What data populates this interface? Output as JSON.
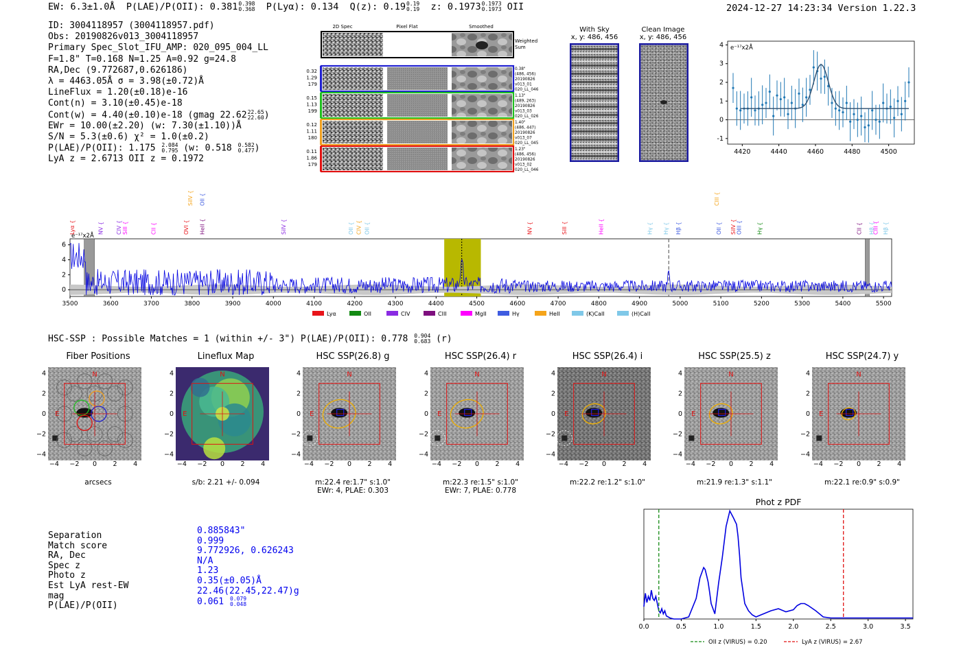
{
  "header": {
    "ew": "EW: 6.3±1.0Å",
    "plae_label": "P(LAE)/P(OII): 0.381",
    "plae_hi": "0.398",
    "plae_lo": "0.368",
    "plya": "P(Lyα): 0.134",
    "qz_label": "Q(z): 0.19",
    "qz_hi": "0.19",
    "qz_lo": "0.19",
    "z_label": "z: 0.1973",
    "z_hi": "0.1973",
    "z_lo": "0.1973",
    "z_line": "OII",
    "timestamp": "2024-12-27 14:23:34  Version 1.22.3"
  },
  "info": {
    "id": "ID: 3004118957 (3004118957.pdf)",
    "obs": "Obs: 20190826v013_3004118957",
    "primary": "Primary Spec_Slot_IFU_AMP: 020_095_004_LL",
    "fparams": "F=1.8\"  T=0.168  N=1.25  A=0.92  g=24.8",
    "radec": "RA,Dec (9.772687,0.626186)",
    "lambda": "λ = 4463.05Å  σ = 3.98(±0.72)Å",
    "lineflux": "LineFlux = 1.20(±0.18)e-16",
    "contn": "Cont(n) = 3.10(±0.45)e-18",
    "contw": "Cont(w) = 4.40(±0.10)e-18 (gmag 22.62",
    "contw_hi": "22.65",
    "contw_lo": "22.60",
    "contw_end": ")",
    "ewr": "EWr = 10.00(±2.20) (w: 7.30(±1.10))Å",
    "sn": "S/N = 5.3(±0.6)  χ² = 1.0(±0.2)",
    "plae": "P(LAE)/P(OII): 1.175",
    "plae_hi": "2.084",
    "plae_lo": "0.795",
    "plae_w": "(w: 0.518",
    "plae_w_hi": "0.582",
    "plae_w_lo": "0.477",
    "plae_w_end": ")",
    "lyaz": "LyA z = 2.6713  OII z = 0.1972"
  },
  "spec2d": {
    "cols": [
      "2D Spec",
      "Pixel Flat",
      "Smoothed"
    ],
    "weighted_label": "Weighted Sum",
    "fibers": [
      {
        "stats": [
          "0.32",
          "1.29",
          "179"
        ],
        "color": "#1f1fd0",
        "notes": [
          "0.38\"",
          "(486, 456)",
          "20190826",
          "v013_01",
          "020_LL_046"
        ]
      },
      {
        "stats": [
          "0.15",
          "1.13",
          "199"
        ],
        "color": "#1fbf1f",
        "notes": [
          "1.13\"",
          "(489, 263)",
          "20190826",
          "v013_03",
          "020_LL_026"
        ]
      },
      {
        "stats": [
          "0.12",
          "1.11",
          "180"
        ],
        "color": "#f0a020",
        "notes": [
          "1.40\"",
          "(486, 447)",
          "20190826",
          "v013_07",
          "020_LL_045"
        ]
      },
      {
        "stats": [
          "0.11",
          "1.86",
          "179"
        ],
        "color": "#e01010",
        "notes": [
          "1.23\"",
          "(486, 456)",
          "20190826",
          "v013_02",
          "020_LL_046"
        ]
      }
    ]
  },
  "sky": {
    "with_sky_title": "With Sky",
    "with_sky_coords": "x, y: 486, 456",
    "clean_title": "Clean Image",
    "clean_coords": "x, y: 486, 456"
  },
  "zoom_chart": {
    "ylabel": "e⁻¹⁷x2Å"
  },
  "full_spectrum": {
    "ylabel": "e⁻¹⁷x2Å",
    "legend": [
      {
        "label": "Lyα",
        "color": "#e8141a"
      },
      {
        "label": "OII",
        "color": "#138a13"
      },
      {
        "label": "CIV",
        "color": "#8a2be2"
      },
      {
        "label": "CIII",
        "color": "#7e0f7e"
      },
      {
        "label": "MgII",
        "color": "#ff00ff"
      },
      {
        "label": "Hγ",
        "color": "#3f5ce0"
      },
      {
        "label": "HeII",
        "color": "#f5a41a"
      },
      {
        "label": "(K)CaII",
        "color": "#7fc8e8"
      },
      {
        "label": "(H)CaII",
        "color": "#7fc8e8"
      }
    ],
    "lines": [
      {
        "label": "Lyα",
        "x": 3510,
        "color": "#e8141a",
        "row": 0
      },
      {
        "label": "NV",
        "x": 3580,
        "color": "#8a2be2",
        "row": 0
      },
      {
        "label": "CIV",
        "x": 3625,
        "color": "#8a2be2",
        "row": 0
      },
      {
        "label": "SiII",
        "x": 3640,
        "color": "#ff00ff",
        "row": 0
      },
      {
        "label": "CII",
        "x": 3710,
        "color": "#ff00ff",
        "row": 0
      },
      {
        "label": "SiIV",
        "x": 3800,
        "color": "#f5a41a",
        "row": 1
      },
      {
        "label": "OII",
        "x": 3830,
        "color": "#3f5ce0",
        "row": 1
      },
      {
        "label": "OVI",
        "x": 3790,
        "color": "#e8141a",
        "row": 0
      },
      {
        "label": "HeII",
        "x": 3830,
        "color": "#7e0f7e",
        "row": 0
      },
      {
        "label": "SiIV",
        "x": 4030,
        "color": "#8a2be2",
        "row": 0
      },
      {
        "label": "OII",
        "x": 4195,
        "color": "#7fc8e8",
        "row": 0
      },
      {
        "label": "CIV",
        "x": 4215,
        "color": "#f5a41a",
        "row": 0
      },
      {
        "label": "OII",
        "x": 4235,
        "color": "#7fc8e8",
        "row": 0
      },
      {
        "label": "NV",
        "x": 4635,
        "color": "#e8141a",
        "row": 0
      },
      {
        "label": "SiII",
        "x": 4720,
        "color": "#e8141a",
        "row": 0
      },
      {
        "label": "HeII",
        "x": 4810,
        "color": "#ff00ff",
        "row": 0
      },
      {
        "label": "Hγ",
        "x": 4930,
        "color": "#7fc8e8",
        "row": 0
      },
      {
        "label": "Hγ",
        "x": 4970,
        "color": "#7fc8e8",
        "row": 0
      },
      {
        "label": "Hβ",
        "x": 5000,
        "color": "#3f5ce0",
        "row": 0
      },
      {
        "label": "CIII",
        "x": 5095,
        "color": "#f5a41a",
        "row": 1
      },
      {
        "label": "OII",
        "x": 5100,
        "color": "#3f5ce0",
        "row": 0
      },
      {
        "label": "SiIV",
        "x": 5135,
        "color": "#e8141a",
        "row": 0
      },
      {
        "label": "OIII",
        "x": 5150,
        "color": "#3f5ce0",
        "row": 0
      },
      {
        "label": "Hγ",
        "x": 5200,
        "color": "#138a13",
        "row": 0
      },
      {
        "label": "CII",
        "x": 5445,
        "color": "#7e0f7e",
        "row": 0
      },
      {
        "label": "Hβ",
        "x": 5475,
        "color": "#7fc8e8",
        "row": 0
      },
      {
        "label": "CIII",
        "x": 5485,
        "color": "#ff00ff",
        "row": 0
      },
      {
        "label": "Hβ",
        "x": 5510,
        "color": "#7fc8e8",
        "row": 0
      }
    ]
  },
  "hsc": {
    "line": "HSC-SSP : Possible Matches = 1 (within +/- 3\")  P(LAE)/P(OII): 0.778",
    "hi": "0.904",
    "lo": "0.683",
    "band": "(r)",
    "cutouts": [
      {
        "title": "Fiber Positions",
        "cap1": "arcsecs",
        "cap2": "",
        "style": "fibers"
      },
      {
        "title": "Lineflux Map",
        "cap1": "s/b: 2.21 +/- 0.094",
        "cap2": "",
        "style": "lineflux"
      },
      {
        "title": "HSC SSP(26.8) g",
        "cap1": "m:22.4  re:1.7\"  s:1.0\"",
        "cap2": "EWr: 4, PLAE: 0.303",
        "style": "img"
      },
      {
        "title": "HSC SSP(26.4) r",
        "cap1": "m:22.3  re:1.5\"  s:1.0\"",
        "cap2": "EWr: 7, PLAE: 0.778",
        "style": "img"
      },
      {
        "title": "HSC SSP(26.4) i",
        "cap1": "m:22.2  re:1.2\"  s:1.0\"",
        "cap2": "",
        "style": "img"
      },
      {
        "title": "HSC SSP(25.5) z",
        "cap1": "m:21.9  re:1.3\"  s:1.1\"",
        "cap2": "",
        "style": "img"
      },
      {
        "title": "HSC SSP(24.7) y",
        "cap1": "m:22.1  re:0.9\"  s:0.9\"",
        "cap2": "",
        "style": "img"
      }
    ],
    "n_label": "N",
    "e_label": "E"
  },
  "match": {
    "labels": [
      "Separation",
      "Match score",
      "RA, Dec",
      "Spec z",
      "Photo z",
      "Est LyA rest-EW",
      "mag",
      "P(LAE)/P(OII)"
    ],
    "values": [
      "0.885843\"",
      "0.999",
      "9.772926, 0.626243",
      "N/A",
      "1.23",
      "0.35(±0.05)Å",
      "22.46(22.45,22.47)g",
      "0.061"
    ],
    "plae_hi": "0.079",
    "plae_lo": "0.048"
  },
  "chart_data": [
    {
      "type": "scatter",
      "title": "",
      "xlabel": "",
      "ylabel": "e⁻¹⁷x2Å",
      "xlim": [
        4412,
        4514
      ],
      "ylim": [
        -1.3,
        4.2
      ],
      "xticks": [
        4420,
        4440,
        4460,
        4480,
        4500
      ],
      "yticks": [
        -1,
        0,
        1,
        2,
        3,
        4
      ],
      "x": [
        4415,
        4417,
        4419,
        4421,
        4423,
        4425,
        4427,
        4429,
        4431,
        4433,
        4435,
        4437,
        4439,
        4441,
        4443,
        4445,
        4447,
        4449,
        4451,
        4453,
        4455,
        4457,
        4459,
        4461,
        4463,
        4465,
        4467,
        4469,
        4471,
        4473,
        4475,
        4477,
        4479,
        4481,
        4483,
        4485,
        4487,
        4489,
        4491,
        4493,
        4495,
        4497,
        4499,
        4501,
        4503,
        4505,
        4507,
        4509,
        4511
      ],
      "y": [
        1.7,
        0.6,
        0.5,
        0.6,
        0.6,
        1.2,
        0.5,
        0.6,
        0.8,
        0.9,
        1.5,
        0.2,
        1.3,
        1.1,
        1.2,
        0.3,
        0.9,
        0.6,
        1.4,
        0.8,
        1.2,
        1.6,
        2.8,
        2.6,
        2.2,
        2.3,
        1.8,
        0.9,
        0.6,
        0.5,
        0.4,
        0.9,
        -0.1,
        0.3,
        0.0,
        0.2,
        -0.4,
        -0.3,
        0.5,
        0.0,
        -0.1,
        0.9,
        0.6,
        0.7,
        0.1,
        1.0,
        0.3,
        1.0,
        2.0
      ],
      "fit": {
        "continuum": 0.6,
        "amplitude": 2.35,
        "center": 4463.05,
        "sigma": 3.98
      }
    },
    {
      "type": "line",
      "title": "",
      "xlabel": "",
      "ylabel": "e⁻¹⁷x2Å",
      "xlim": [
        3500,
        5520
      ],
      "ylim": [
        -0.9,
        6.8
      ],
      "xticks": [
        3500,
        3600,
        3700,
        3800,
        3900,
        4000,
        4100,
        4200,
        4300,
        4400,
        4500,
        4600,
        4700,
        4800,
        4900,
        5000,
        5100,
        5200,
        5300,
        5400,
        5500
      ],
      "yticks": [
        0,
        2,
        4,
        6
      ],
      "highlight_band": [
        4420,
        4510
      ],
      "line_center": 4463.05,
      "dashed_x": 4972
    },
    {
      "type": "line",
      "title": "Phot z PDF",
      "xlim": [
        0,
        3.6
      ],
      "ylim": [
        0,
        1.0
      ],
      "xticks": [
        0.0,
        0.5,
        1.0,
        1.5,
        2.0,
        2.5,
        3.0,
        3.5
      ],
      "x": [
        0.0,
        0.02,
        0.04,
        0.06,
        0.08,
        0.1,
        0.12,
        0.14,
        0.16,
        0.18,
        0.2,
        0.22,
        0.24,
        0.26,
        0.28,
        0.3,
        0.35,
        0.4,
        0.5,
        0.6,
        0.7,
        0.75,
        0.8,
        0.82,
        0.84,
        0.86,
        0.88,
        0.9,
        0.95,
        1.0,
        1.05,
        1.1,
        1.15,
        1.2,
        1.22,
        1.24,
        1.26,
        1.28,
        1.3,
        1.35,
        1.4,
        1.45,
        1.5,
        1.6,
        1.7,
        1.8,
        1.9,
        2.0,
        2.05,
        2.1,
        2.15,
        2.2,
        2.3,
        2.4,
        2.5,
        3.0,
        3.6
      ],
      "y": [
        0.12,
        0.25,
        0.16,
        0.22,
        0.18,
        0.28,
        0.2,
        0.18,
        0.22,
        0.15,
        0.08,
        0.06,
        0.1,
        0.05,
        0.08,
        0.03,
        0.01,
        0.0,
        0.0,
        0.02,
        0.2,
        0.4,
        0.5,
        0.48,
        0.42,
        0.36,
        0.26,
        0.15,
        0.05,
        0.35,
        0.6,
        0.9,
        1.05,
        0.98,
        0.95,
        0.92,
        0.8,
        0.62,
        0.4,
        0.15,
        0.08,
        0.04,
        0.02,
        0.05,
        0.08,
        0.1,
        0.07,
        0.09,
        0.13,
        0.15,
        0.15,
        0.13,
        0.08,
        0.02,
        0.01,
        0.01,
        0.01
      ],
      "markers": [
        {
          "label": "OII z (VIRUS) = 0.20",
          "x": 0.2,
          "color": "#138a13"
        },
        {
          "label": "LyA z (VIRUS) = 2.67",
          "x": 2.67,
          "color": "#e01010"
        }
      ]
    }
  ],
  "colors": {
    "spectrum": "#0000e0",
    "band": "#b8b800",
    "errbar": "#1f77b4",
    "fit": "#2f4f6f"
  }
}
